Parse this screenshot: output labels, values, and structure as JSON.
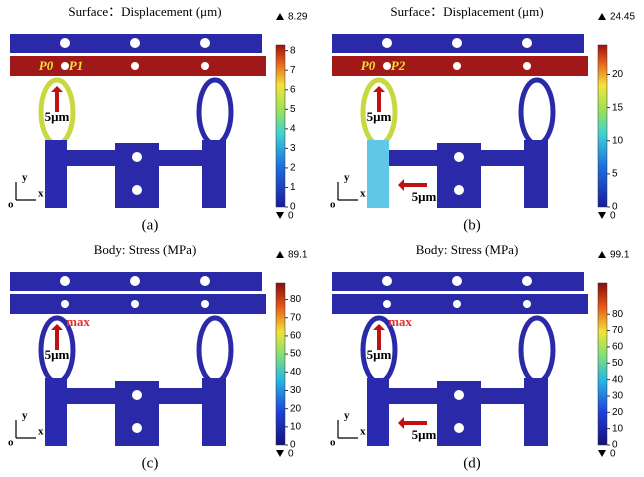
{
  "panels": [
    {
      "title": "Surface：Displacement (μm)",
      "colorbar": {
        "max": 8.29,
        "min": 0,
        "ticks": [
          0,
          1,
          2,
          3,
          4,
          5,
          6,
          7,
          8
        ]
      },
      "annotations": [
        "P0",
        "P1",
        "5μm"
      ],
      "axes": {
        "y": "y",
        "x": "x",
        "origin": "o"
      },
      "caption": "(a)"
    },
    {
      "title": "Surface：Displacement (μm)",
      "colorbar": {
        "max": 24.45,
        "min": 0,
        "ticks": [
          0,
          5,
          10,
          15,
          20
        ]
      },
      "annotations": [
        "P0",
        "P2",
        "5μm",
        "5μm"
      ],
      "axes": {
        "y": "y",
        "x": "x",
        "origin": "o"
      },
      "caption": "(b)"
    },
    {
      "title": "Body: Stress (MPa)",
      "colorbar": {
        "max": 89.1,
        "min": 0,
        "ticks": [
          0,
          10,
          20,
          30,
          40,
          50,
          60,
          70,
          80
        ]
      },
      "annotations": [
        "max",
        "5μm"
      ],
      "axes": {
        "y": "y",
        "x": "x",
        "origin": "o"
      },
      "caption": "(c)"
    },
    {
      "title": "Body: Stress (MPa)",
      "colorbar": {
        "max": 99.1,
        "min": 0,
        "ticks": [
          0,
          10,
          20,
          30,
          40,
          50,
          60,
          70,
          80
        ]
      },
      "annotations": [
        "max",
        "5μm",
        "5μm"
      ],
      "axes": {
        "y": "y",
        "x": "x",
        "origin": "o"
      },
      "caption": "(d)"
    }
  ]
}
